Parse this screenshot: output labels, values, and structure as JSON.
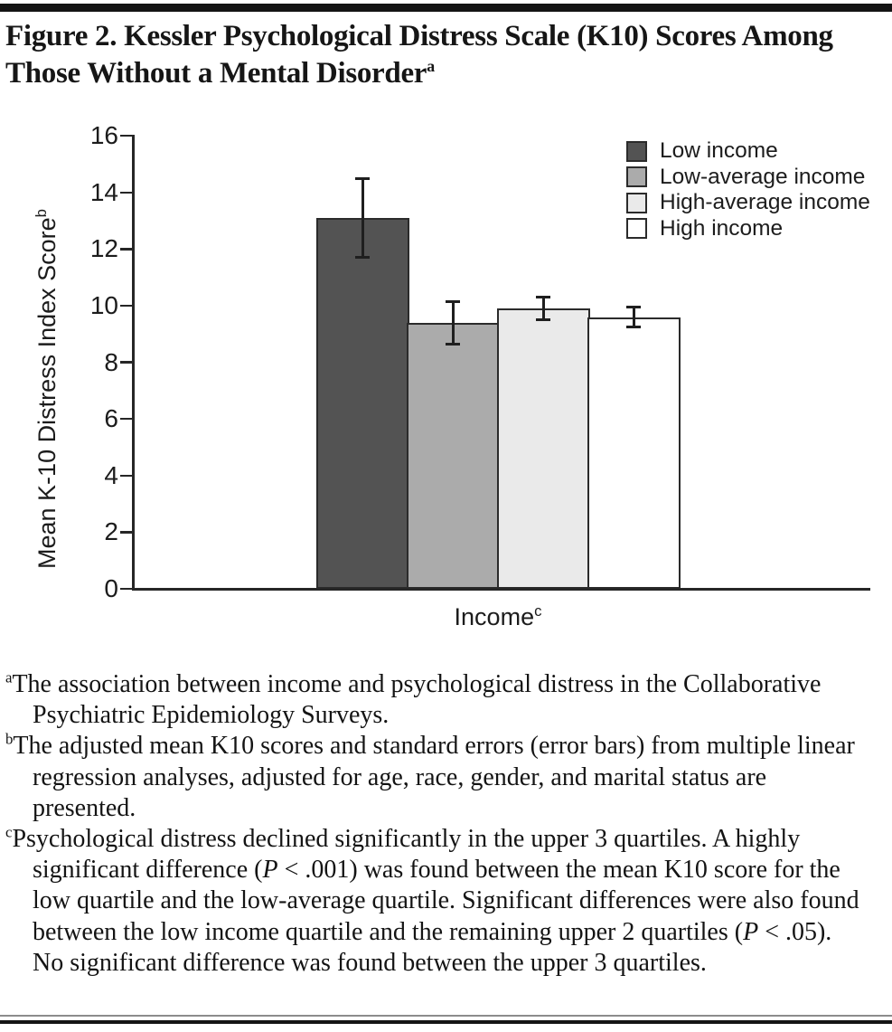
{
  "figure": {
    "title_text": "Figure 2. Kessler Psychological Distress Scale (K10) Scores Among Those Without a Mental Disorder",
    "title_superscript": "a"
  },
  "chart_data": {
    "type": "bar",
    "title": "Figure 2. Kessler Psychological Distress Scale (K10) Scores Among Those Without a Mental Disorder",
    "categories": [
      "Low income",
      "Low-average income",
      "High-average income",
      "High income"
    ],
    "values": [
      13.1,
      9.4,
      9.9,
      9.6
    ],
    "errors": [
      1.4,
      0.75,
      0.4,
      0.35
    ],
    "xlabel": "Income",
    "xlabel_superscript": "c",
    "ylabel": "Mean K-10 Distress Index Score",
    "ylabel_superscript": "b",
    "ylim": [
      0,
      16
    ],
    "ytick_interval": 2,
    "ytick_labels": [
      "0",
      "2",
      "4",
      "6",
      "8",
      "10",
      "12",
      "14",
      "16"
    ],
    "grid": false,
    "legend_position": "top-right",
    "legend": [
      {
        "label": "Low income",
        "color": "#535353"
      },
      {
        "label": "Low-average income",
        "color": "#ababab"
      },
      {
        "label": "High-average income",
        "color": "#eaeaea"
      },
      {
        "label": "High income",
        "color": "#ffffff"
      }
    ],
    "bar_border_color": "#2b2b2b",
    "axis_color": "#262626",
    "error_bar_color": "#1f1f1f"
  },
  "footnotes": [
    {
      "marker": "a",
      "text": "The association between income and psychological distress in the Collaborative Psychiatric Epidemiology Surveys."
    },
    {
      "marker": "b",
      "text": "The adjusted mean K10 scores and standard errors (error bars) from multiple linear regression analyses, adjusted for age, race, gender, and marital status are presented."
    },
    {
      "marker": "c",
      "text": "Psychological distress declined significantly in the upper 3 quartiles. A highly significant difference (P < .001) was found between the mean K10 score for the low quartile and the low-average quartile. Significant differences were also found between the low income quartile and the remaining upper 2 quartiles (P < .05). No significant difference was found between the upper 3 quartiles."
    }
  ]
}
